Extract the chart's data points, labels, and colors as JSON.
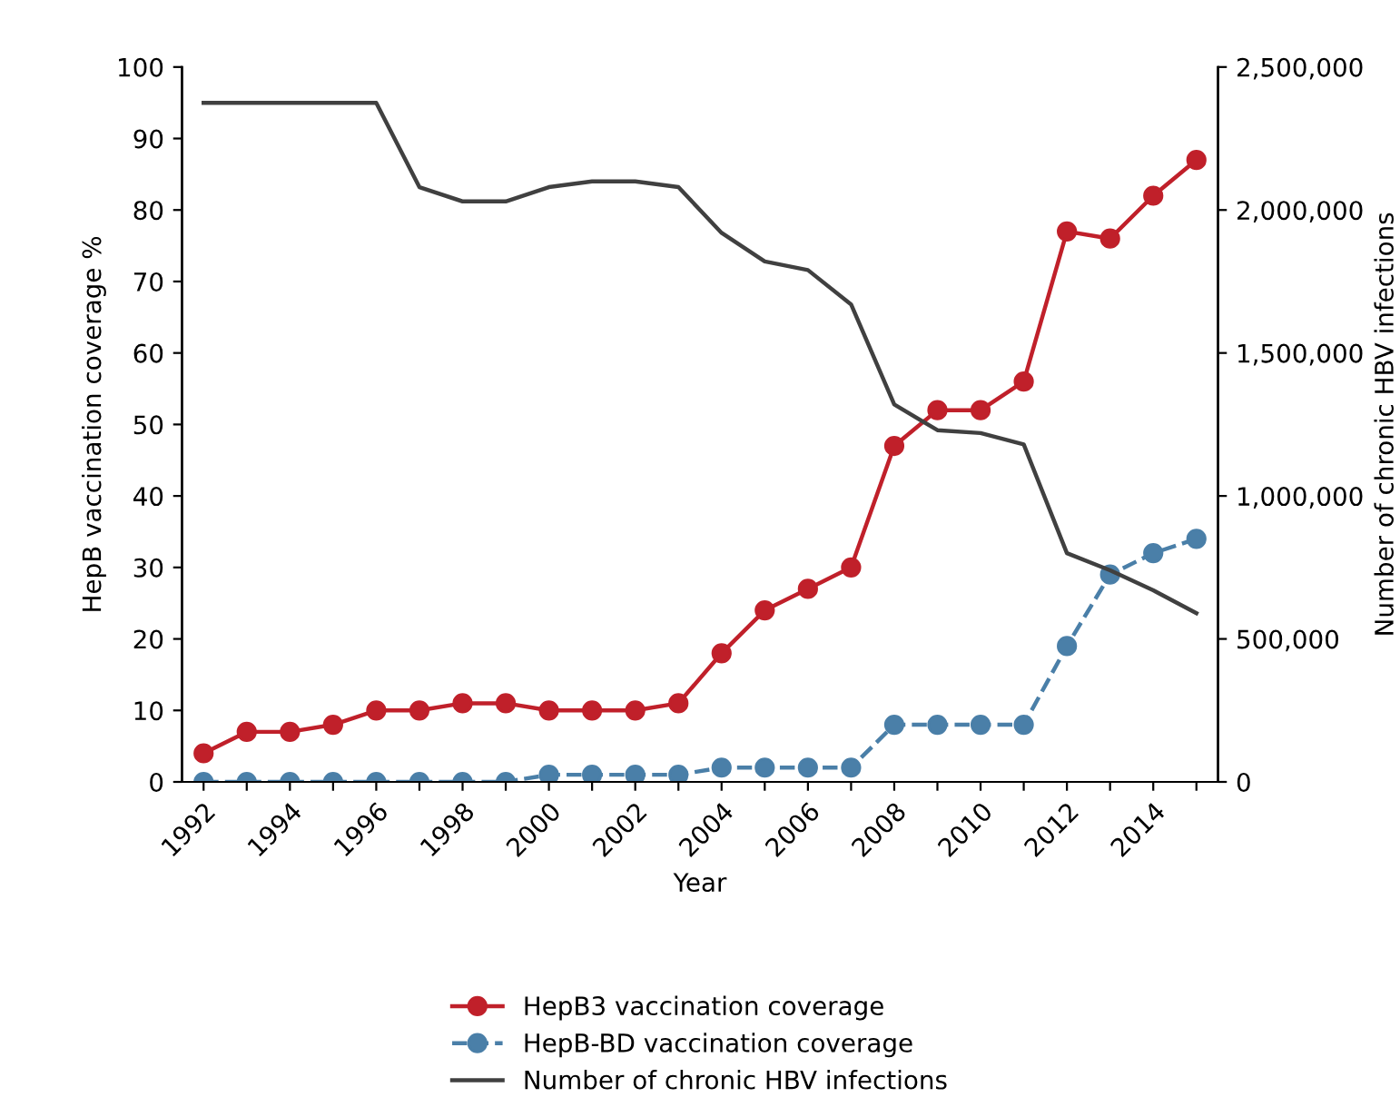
{
  "chart_data": {
    "type": "line",
    "xlabel": "Year",
    "ylabel": "HepB vaccination coverage %",
    "y2label": "Number of chronic HBV infections",
    "categories": [
      "1992",
      null,
      "1994",
      null,
      "1996",
      null,
      "1998",
      null,
      "2000",
      null,
      "2002",
      null,
      "2004",
      null,
      "2006",
      null,
      "2008",
      null,
      "2010",
      null,
      "2012",
      null,
      "2014",
      null
    ],
    "series": [
      {
        "name": "HepB3 vaccination coverage",
        "color": "#c0202a",
        "marker": "circle",
        "line_style": "solid",
        "values": [
          4,
          7,
          7,
          8,
          10,
          10,
          11,
          11,
          10,
          10,
          10,
          11,
          18,
          24,
          27,
          30,
          47,
          52,
          52,
          56,
          77,
          76,
          82,
          87
        ]
      },
      {
        "name": "HepB-BD vaccination coverage",
        "color": "#4a7fa8",
        "marker": "circle",
        "line_style": "dashed",
        "values": [
          0,
          0,
          0,
          0,
          0,
          0,
          0,
          0,
          1,
          1,
          1,
          1,
          2,
          2,
          2,
          2,
          8,
          8,
          8,
          8,
          19,
          29,
          32,
          34
        ]
      },
      {
        "name": "Number of chronic HBV infections",
        "color": "#404040",
        "marker": "none",
        "line_style": "solid",
        "axis": "y2",
        "values": [
          2375000,
          2375000,
          2375000,
          2375000,
          2375000,
          2080000,
          2030000,
          2030000,
          2080000,
          2100000,
          2100000,
          2080000,
          1920000,
          1820000,
          1790000,
          1670000,
          1320000,
          1230000,
          1220000,
          1180000,
          800000,
          740000,
          670000,
          590000
        ]
      }
    ],
    "ylim": [
      0,
      100
    ],
    "yticks": [
      0,
      10,
      20,
      30,
      40,
      50,
      60,
      70,
      80,
      90,
      100
    ],
    "y2lim": [
      0,
      2500000
    ],
    "y2ticks": [
      0,
      {
        "value": 500000,
        "label": "500,000"
      },
      {
        "value": 1000000,
        "label": "1,000,000"
      },
      {
        "value": 1500000,
        "label": "1,500,000"
      },
      {
        "value": 2000000,
        "label": "2,000,000"
      },
      {
        "value": 2500000,
        "label": "2,500,000"
      }
    ],
    "grid": false,
    "legend": "bottom"
  }
}
